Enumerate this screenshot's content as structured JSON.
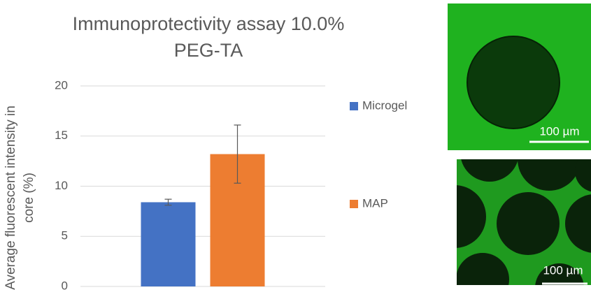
{
  "chart_data": {
    "type": "bar",
    "title": [
      "Immunoprotectivity assay 10.0%",
      "PEG-TA"
    ],
    "y_label": [
      "Average fluorescent intensity in",
      "core (%)"
    ],
    "categories": [
      null
    ],
    "series": [
      {
        "name": "Microgel",
        "color": "#4472c4",
        "values": [
          8.4
        ],
        "errors": [
          0.3
        ]
      },
      {
        "name": "MAP",
        "color": "#ed7d31",
        "values": [
          13.2
        ],
        "errors": [
          2.9
        ]
      }
    ],
    "ylim": [
      0,
      20
    ],
    "yticks": [
      0,
      5,
      10,
      15,
      20
    ],
    "grid": true,
    "legend": "right"
  },
  "images": [
    {
      "scale_bar": "100 µm"
    },
    {
      "scale_bar": "100 µm"
    }
  ]
}
